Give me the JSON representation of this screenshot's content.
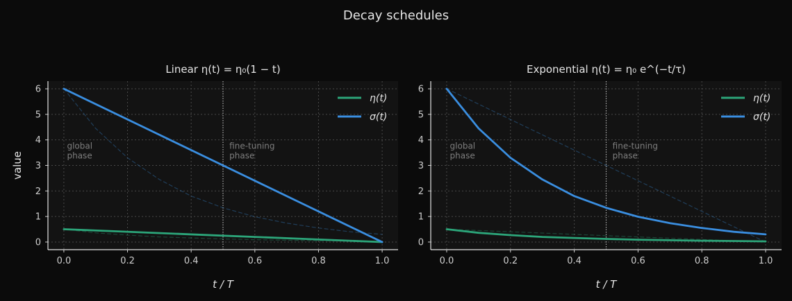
{
  "figure": {
    "title": "Decay schedules"
  },
  "colors": {
    "background": "#0b0b0b",
    "axes_face": "#131313",
    "grid": "#4a4a4a",
    "eta": "#2ca67a",
    "sigma": "#3a8ee0",
    "divider": "#bdbdbd",
    "annotation": "#7e7e7e"
  },
  "chart_data": [
    {
      "type": "line",
      "title": "Linear  η(t) = η₀(1 − t)",
      "xlabel": "t / T",
      "ylabel": "value",
      "xlim": [
        -0.05,
        1.05
      ],
      "ylim": [
        -0.3,
        6.3
      ],
      "xticks": [
        "0.0",
        "0.2",
        "0.4",
        "0.6",
        "0.8",
        "1.0"
      ],
      "yticks": [
        "0",
        "1",
        "2",
        "3",
        "4",
        "5",
        "6"
      ],
      "grid": true,
      "legend_position": "top-right",
      "phase_boundary": 0.5,
      "annotations": [
        {
          "text_lines": [
            "global",
            "phase"
          ],
          "x": 0.01,
          "y": 3.6
        },
        {
          "text_lines": [
            "fine-tuning",
            "phase"
          ],
          "x": 0.52,
          "y": 3.6
        }
      ],
      "series": [
        {
          "name": "η(t)",
          "color": "#2ca67a",
          "style": "solid",
          "x": [
            0.0,
            0.25,
            0.5,
            0.75,
            1.0
          ],
          "y": [
            0.5,
            0.375,
            0.25,
            0.125,
            0.0
          ]
        },
        {
          "name": "σ(t)",
          "color": "#3a8ee0",
          "style": "solid",
          "x": [
            0.0,
            0.25,
            0.5,
            0.75,
            1.0
          ],
          "y": [
            6.0,
            4.5,
            3.0,
            1.5,
            0.0
          ]
        },
        {
          "name": "",
          "color": "#2ca67a",
          "style": "dashed-faint",
          "x": [
            0.0,
            0.1,
            0.2,
            0.3,
            0.4,
            0.5,
            0.6,
            0.7,
            0.8,
            0.9,
            1.0
          ],
          "y": [
            0.5,
            0.36,
            0.27,
            0.2,
            0.16,
            0.12,
            0.09,
            0.07,
            0.05,
            0.04,
            0.025
          ]
        },
        {
          "name": "",
          "color": "#3a8ee0",
          "style": "dashed-faint",
          "x": [
            0.0,
            0.1,
            0.2,
            0.3,
            0.4,
            0.5,
            0.6,
            0.7,
            0.8,
            0.9,
            1.0
          ],
          "y": [
            6.0,
            4.45,
            3.3,
            2.45,
            1.8,
            1.34,
            0.99,
            0.74,
            0.55,
            0.4,
            0.3
          ]
        }
      ]
    },
    {
      "type": "line",
      "title": "Exponential  η(t) = η₀ e^(−t/τ)",
      "xlabel": "t / T",
      "ylabel": "",
      "xlim": [
        -0.05,
        1.05
      ],
      "ylim": [
        -0.3,
        6.3
      ],
      "xticks": [
        "0.0",
        "0.2",
        "0.4",
        "0.6",
        "0.8",
        "1.0"
      ],
      "yticks": [
        "0",
        "1",
        "2",
        "3",
        "4",
        "5",
        "6"
      ],
      "grid": true,
      "legend_position": "top-right",
      "phase_boundary": 0.5,
      "annotations": [
        {
          "text_lines": [
            "global",
            "phase"
          ],
          "x": 0.01,
          "y": 3.6
        },
        {
          "text_lines": [
            "fine-tuning",
            "phase"
          ],
          "x": 0.52,
          "y": 3.6
        }
      ],
      "series": [
        {
          "name": "η(t)",
          "color": "#2ca67a",
          "style": "solid",
          "x": [
            0.0,
            0.1,
            0.2,
            0.3,
            0.4,
            0.5,
            0.6,
            0.7,
            0.8,
            0.9,
            1.0
          ],
          "y": [
            0.5,
            0.36,
            0.27,
            0.2,
            0.16,
            0.12,
            0.09,
            0.07,
            0.05,
            0.04,
            0.025
          ]
        },
        {
          "name": "σ(t)",
          "color": "#3a8ee0",
          "style": "solid",
          "x": [
            0.0,
            0.1,
            0.2,
            0.3,
            0.4,
            0.5,
            0.6,
            0.7,
            0.8,
            0.9,
            1.0
          ],
          "y": [
            6.0,
            4.45,
            3.3,
            2.45,
            1.8,
            1.34,
            0.99,
            0.74,
            0.55,
            0.4,
            0.3
          ]
        },
        {
          "name": "",
          "color": "#2ca67a",
          "style": "dashed-faint",
          "x": [
            0.0,
            0.25,
            0.5,
            0.75,
            1.0
          ],
          "y": [
            0.5,
            0.375,
            0.25,
            0.125,
            0.0
          ]
        },
        {
          "name": "",
          "color": "#3a8ee0",
          "style": "dashed-faint",
          "x": [
            0.0,
            0.25,
            0.5,
            0.75,
            1.0
          ],
          "y": [
            6.0,
            4.5,
            3.0,
            1.5,
            0.0
          ]
        }
      ]
    }
  ]
}
